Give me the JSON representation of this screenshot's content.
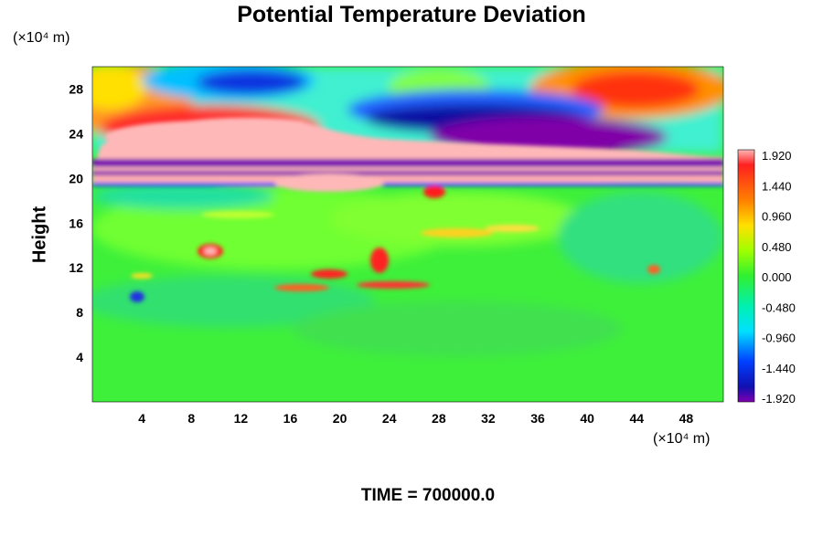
{
  "chart_data": {
    "type": "heatmap",
    "title": "Potential Temperature Deviation",
    "ylabel": "Height",
    "x_unit_label": "(×10⁴ m)",
    "y_unit_label": "(×10⁴ m)",
    "xlim": [
      0,
      51
    ],
    "ylim": [
      0,
      30
    ],
    "x_ticks": [
      4,
      8,
      12,
      16,
      20,
      24,
      28,
      32,
      36,
      40,
      44,
      48
    ],
    "y_ticks": [
      4,
      8,
      12,
      16,
      20,
      24,
      28
    ],
    "colorbar": {
      "min": -1.92,
      "max": 1.92,
      "tick_labels": [
        "1.920",
        "1.440",
        "0.960",
        "0.480",
        "0.000",
        "-0.480",
        "-0.960",
        "-1.440",
        "-1.920"
      ]
    },
    "footer": "TIME = 700000.0"
  }
}
